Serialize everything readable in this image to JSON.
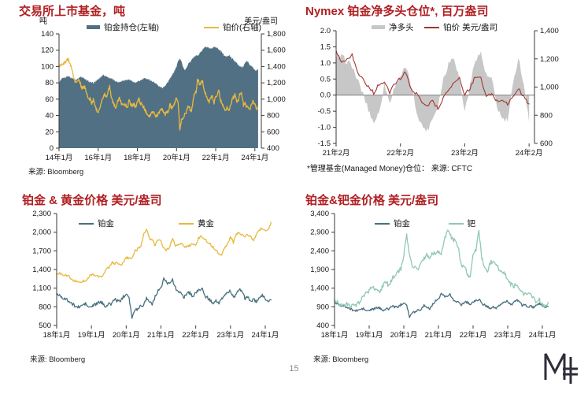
{
  "page": {
    "number": "15"
  },
  "colors": {
    "title_red": "#B02023",
    "axis": "#3a3a3a",
    "platinum_holdings_area": "#527083",
    "platinum_price_gold": "#E8B93E",
    "net_long_gray": "#c7c7c7",
    "price_dark_red": "#A23532",
    "platinum_teal": "#47707E",
    "gold_yellow": "#E8B93E",
    "palladium_green": "#8FC9B2",
    "logo": "#2e2e3a"
  },
  "chart_data": [
    {
      "type": "area",
      "title": "交易所上市基金，吨",
      "unit_left": "吨",
      "unit_right": "美元/盎司",
      "source": "来源: Bloomberg",
      "x_start": 2014.0,
      "x_step": 0.0833333,
      "xlim": [
        2014.0,
        2024.33
      ],
      "xticks": [
        {
          "v": 2014.0,
          "label": "14年1月"
        },
        {
          "v": 2016.0,
          "label": "16年1月"
        },
        {
          "v": 2018.0,
          "label": "18年1月"
        },
        {
          "v": 2020.0,
          "label": "20年1月"
        },
        {
          "v": 2022.0,
          "label": "22年1月"
        },
        {
          "v": 2024.0,
          "label": "24年1月"
        }
      ],
      "left_axis": {
        "lim": [
          0,
          140
        ],
        "ticks": [
          {
            "v": 140,
            "label": "140"
          },
          {
            "v": 120,
            "label": "120"
          },
          {
            "v": 100,
            "label": "100"
          },
          {
            "v": 80,
            "label": "80"
          },
          {
            "v": 60,
            "label": "60"
          },
          {
            "v": 40,
            "label": "40"
          },
          {
            "v": 20,
            "label": "20"
          },
          {
            "v": 0,
            "label": "0"
          }
        ]
      },
      "right_axis": {
        "lim": [
          400,
          1800
        ],
        "ticks": [
          {
            "v": 1800,
            "label": "1,800"
          },
          {
            "v": 1600,
            "label": "1,600"
          },
          {
            "v": 1400,
            "label": "1,400"
          },
          {
            "v": 1200,
            "label": "1,200"
          },
          {
            "v": 1000,
            "label": "1,000"
          },
          {
            "v": 800,
            "label": "800"
          },
          {
            "v": 600,
            "label": "600"
          },
          {
            "v": 400,
            "label": "400"
          }
        ]
      },
      "series": [
        {
          "name": "铂金持仓(左轴)",
          "type": "area",
          "axis": "left",
          "color": "#527083",
          "base": 0,
          "jitter": 1.2,
          "seed": 0,
          "values": [
            80,
            83,
            85,
            86,
            87,
            88,
            88,
            87,
            86,
            85,
            84,
            84,
            86,
            88,
            87,
            86,
            84,
            83,
            82,
            81,
            80,
            80,
            81,
            83,
            84,
            86,
            88,
            90,
            89,
            88,
            87,
            86,
            85,
            84,
            83,
            82,
            81,
            81,
            82,
            83,
            83,
            84,
            84,
            84,
            83,
            82,
            81,
            80,
            81,
            82,
            83,
            84,
            85,
            86,
            85,
            84,
            83,
            82,
            81,
            80,
            78,
            76,
            75,
            74,
            75,
            77,
            79,
            82,
            85,
            88,
            92,
            96,
            100,
            107,
            110,
            106,
            100,
            96,
            98,
            102,
            105,
            108,
            110,
            112,
            113,
            114,
            116,
            118,
            121,
            123,
            124,
            123,
            122,
            121,
            123,
            124,
            124,
            123,
            121,
            119,
            117,
            114,
            112,
            113,
            114,
            112,
            110,
            108,
            106,
            104,
            101,
            100,
            99,
            101,
            104,
            107,
            105,
            102,
            100,
            98,
            96,
            95,
            96
          ]
        },
        {
          "name": "铂价(右轴)",
          "type": "line",
          "axis": "right",
          "color": "#E8B93E",
          "width": 1.3,
          "jitter": 20,
          "seed": 500,
          "values": [
            1400,
            1420,
            1440,
            1430,
            1460,
            1480,
            1480,
            1420,
            1360,
            1260,
            1210,
            1210,
            1240,
            1190,
            1130,
            1150,
            1140,
            1080,
            990,
            1010,
            950,
            990,
            930,
            870,
            850,
            900,
            970,
            1010,
            1070,
            1020,
            1100,
            1150,
            1030,
            970,
            920,
            900,
            970,
            1020,
            950,
            950,
            930,
            920,
            910,
            980,
            940,
            920,
            940,
            900,
            970,
            1000,
            950,
            920,
            900,
            850,
            830,
            790,
            800,
            830,
            850,
            790,
            800,
            830,
            850,
            880,
            850,
            810,
            840,
            850,
            930,
            890,
            900,
            960,
            1020,
            960,
            620,
            740,
            770,
            820,
            830,
            930,
            890,
            850,
            960,
            1070,
            1090,
            1260,
            1180,
            1200,
            1230,
            1100,
            1060,
            1000,
            960,
            1020,
            1030,
            960,
            1030,
            1060,
            1110,
            980,
            950,
            900,
            870,
            900,
            850,
            920,
            990,
            1030,
            1060,
            950,
            990,
            1080,
            1060,
            930,
            950,
            900,
            910,
            880,
            930,
            990,
            930,
            890,
            910
          ]
        }
      ]
    },
    {
      "type": "area",
      "title": "Nymex 铂金净多头仓位*, 百万盎司",
      "footnote": "*管理基金(Managed Money)仓位：  来源: CFTC",
      "x_start": 2021.0833,
      "x_step": 0.0833333,
      "xlim": [
        2021.0833,
        2024.167
      ],
      "zero_line": 0,
      "xticks": [
        {
          "v": 2021.0833,
          "label": "21年2月"
        },
        {
          "v": 2022.0833,
          "label": "22年2月"
        },
        {
          "v": 2023.0833,
          "label": "23年2月"
        },
        {
          "v": 2024.0833,
          "label": "24年2月"
        }
      ],
      "left_axis": {
        "lim": [
          -1.5,
          2.0
        ],
        "ticks": [
          {
            "v": 2.0,
            "label": "2.0"
          },
          {
            "v": 1.5,
            "label": "1.5"
          },
          {
            "v": 1.0,
            "label": "1.0"
          },
          {
            "v": 0.5,
            "label": "0.5"
          },
          {
            "v": 0.0,
            "label": "0.0"
          },
          {
            "v": -0.5,
            "label": "-0.5"
          },
          {
            "v": -1.0,
            "label": "-1.0"
          },
          {
            "v": -1.5,
            "label": "-1.5"
          }
        ]
      },
      "right_axis": {
        "lim": [
          600,
          1400
        ],
        "ticks": [
          {
            "v": 1400,
            "label": "1,400"
          },
          {
            "v": 1200,
            "label": "1,200"
          },
          {
            "v": 1000,
            "label": "1,000"
          },
          {
            "v": 800,
            "label": "800"
          },
          {
            "v": 600,
            "label": "600"
          }
        ]
      },
      "series": [
        {
          "name": "净多头",
          "type": "area",
          "axis": "left",
          "color": "#c7c7c7",
          "base": 0,
          "jitter": 0.1,
          "seed": 77,
          "values": [
            1.15,
            1.2,
            1.05,
            0.9,
            0.45,
            0.05,
            -0.45,
            -0.85,
            -0.55,
            0.35,
            -0.25,
            0.3,
            0.6,
            0.85,
            0.3,
            -0.5,
            -0.95,
            -1.1,
            -0.7,
            -0.35,
            0.5,
            1.0,
            1.2,
            0.5,
            -0.5,
            0.3,
            1.15,
            1.3,
            0.6,
            0.5,
            -0.35,
            -0.75,
            -0.8,
            0.3,
            1.2,
            0.35,
            -0.85
          ]
        },
        {
          "name": "铂价 美元/盎司",
          "type": "line",
          "axis": "right",
          "color": "#A23532",
          "width": 1.1,
          "jitter": 12,
          "seed": 900,
          "values": [
            1260,
            1180,
            1200,
            1230,
            1100,
            1060,
            1000,
            960,
            1020,
            1030,
            960,
            1030,
            1060,
            1110,
            980,
            950,
            900,
            870,
            900,
            850,
            920,
            990,
            1030,
            1060,
            950,
            990,
            1080,
            1060,
            930,
            950,
            900,
            910,
            880,
            930,
            990,
            930,
            880
          ]
        }
      ]
    },
    {
      "type": "line",
      "title": "铂金 & 黄金价格 美元/盎司",
      "source": "来源: Bloomberg",
      "x_start": 2018.0,
      "x_step": 0.0833333,
      "xlim": [
        2018.0,
        2024.25
      ],
      "xticks": [
        {
          "v": 2018.0,
          "label": "18年1月"
        },
        {
          "v": 2019.0,
          "label": "19年1月"
        },
        {
          "v": 2020.0,
          "label": "20年1月"
        },
        {
          "v": 2021.0,
          "label": "21年1月"
        },
        {
          "v": 2022.0,
          "label": "22年1月"
        },
        {
          "v": 2023.0,
          "label": "23年1月"
        },
        {
          "v": 2024.0,
          "label": "24年1月"
        }
      ],
      "left_axis": {
        "lim": [
          500,
          2300
        ],
        "ticks": [
          {
            "v": 2300,
            "label": "2,300"
          },
          {
            "v": 2000,
            "label": "2,000"
          },
          {
            "v": 1700,
            "label": "1,700"
          },
          {
            "v": 1400,
            "label": "1,400"
          },
          {
            "v": 1100,
            "label": "1,100"
          },
          {
            "v": 800,
            "label": "800"
          },
          {
            "v": 500,
            "label": "500"
          }
        ]
      },
      "series": [
        {
          "name": "铂金",
          "type": "line",
          "axis": "left",
          "color": "#47707E",
          "width": 1.3,
          "jitter": 25,
          "seed": 500,
          "values": [
            1000,
            990,
            950,
            920,
            900,
            850,
            830,
            790,
            800,
            830,
            850,
            790,
            800,
            830,
            850,
            880,
            850,
            810,
            840,
            850,
            930,
            890,
            900,
            960,
            1020,
            960,
            620,
            740,
            770,
            820,
            830,
            930,
            890,
            850,
            960,
            1070,
            1090,
            1260,
            1180,
            1200,
            1230,
            1100,
            1060,
            1000,
            960,
            1020,
            1030,
            960,
            1030,
            1060,
            1110,
            980,
            950,
            900,
            870,
            900,
            850,
            920,
            990,
            1030,
            1060,
            950,
            990,
            1080,
            1060,
            930,
            950,
            900,
            910,
            880,
            930,
            990,
            930,
            890,
            910
          ]
        },
        {
          "name": "黄金",
          "type": "line",
          "axis": "left",
          "color": "#E8B93E",
          "width": 1.3,
          "jitter": 20,
          "seed": 1300,
          "values": [
            1330,
            1335,
            1320,
            1315,
            1300,
            1250,
            1220,
            1200,
            1190,
            1215,
            1220,
            1280,
            1320,
            1315,
            1290,
            1280,
            1300,
            1410,
            1420,
            1520,
            1490,
            1510,
            1460,
            1520,
            1580,
            1590,
            1570,
            1700,
            1730,
            1770,
            1960,
            2060,
            1890,
            1880,
            1780,
            1890,
            1850,
            1730,
            1710,
            1770,
            1900,
            1770,
            1810,
            1810,
            1760,
            1780,
            1790,
            1810,
            1800,
            1900,
            1940,
            1900,
            1840,
            1810,
            1760,
            1710,
            1660,
            1640,
            1750,
            1820,
            1930,
            1830,
            1970,
            1990,
            1960,
            1920,
            1960,
            1940,
            1850,
            1990,
            2040,
            2060,
            2040,
            2030,
            2160
          ]
        }
      ]
    },
    {
      "type": "line",
      "title": "铂金&钯金价格 美元/盎司",
      "source": "来源: Bloomberg",
      "x_start": 2018.0,
      "x_step": 0.0833333,
      "xlim": [
        2018.0,
        2024.25
      ],
      "xticks": [
        {
          "v": 2018.0,
          "label": "18年1月"
        },
        {
          "v": 2019.0,
          "label": "19年1月"
        },
        {
          "v": 2020.0,
          "label": "20年1月"
        },
        {
          "v": 2021.0,
          "label": "21年1月"
        },
        {
          "v": 2022.0,
          "label": "22年1月"
        },
        {
          "v": 2023.0,
          "label": "23年1月"
        },
        {
          "v": 2024.0,
          "label": "24年1月"
        }
      ],
      "left_axis": {
        "lim": [
          400,
          3400
        ],
        "ticks": [
          {
            "v": 3400,
            "label": "3,400"
          },
          {
            "v": 2900,
            "label": "2,900"
          },
          {
            "v": 2400,
            "label": "2,400"
          },
          {
            "v": 1900,
            "label": "1,900"
          },
          {
            "v": 1400,
            "label": "1,400"
          },
          {
            "v": 900,
            "label": "900"
          },
          {
            "v": 400,
            "label": "400"
          }
        ]
      },
      "series": [
        {
          "name": "铂金",
          "type": "line",
          "axis": "left",
          "color": "#47707E",
          "width": 1.3,
          "jitter": 30,
          "seed": 500,
          "values": [
            1000,
            990,
            950,
            920,
            900,
            850,
            830,
            790,
            800,
            830,
            850,
            790,
            800,
            830,
            850,
            880,
            850,
            810,
            840,
            850,
            930,
            890,
            900,
            960,
            1020,
            960,
            620,
            740,
            770,
            820,
            830,
            930,
            890,
            850,
            960,
            1070,
            1090,
            1260,
            1180,
            1200,
            1230,
            1100,
            1060,
            1000,
            960,
            1020,
            1030,
            960,
            1030,
            1060,
            1110,
            980,
            950,
            900,
            870,
            900,
            850,
            920,
            990,
            1030,
            1060,
            950,
            990,
            1080,
            1060,
            930,
            950,
            900,
            910,
            880,
            930,
            990,
            930,
            890,
            910
          ]
        },
        {
          "name": "钯",
          "type": "line",
          "axis": "left",
          "color": "#8FC9B2",
          "width": 1.3,
          "jitter": 60,
          "seed": 1700,
          "values": [
            1090,
            1040,
            960,
            970,
            980,
            950,
            930,
            910,
            980,
            1080,
            1170,
            1260,
            1340,
            1470,
            1380,
            1350,
            1330,
            1520,
            1540,
            1470,
            1660,
            1770,
            1850,
            1920,
            2290,
            2820,
            2300,
            1950,
            1940,
            1920,
            2100,
            2200,
            2300,
            2240,
            2330,
            2350,
            2360,
            2340,
            2640,
            2950,
            2830,
            2700,
            2650,
            2420,
            1960,
            2020,
            1800,
            1700,
            2300,
            2420,
            2980,
            2230,
            2000,
            1870,
            2080,
            2130,
            2070,
            1880,
            1880,
            1790,
            1650,
            1500,
            1460,
            1510,
            1350,
            1280,
            1250,
            1230,
            1250,
            1120,
            1020,
            1100,
            975,
            890,
            1020
          ]
        }
      ]
    }
  ]
}
